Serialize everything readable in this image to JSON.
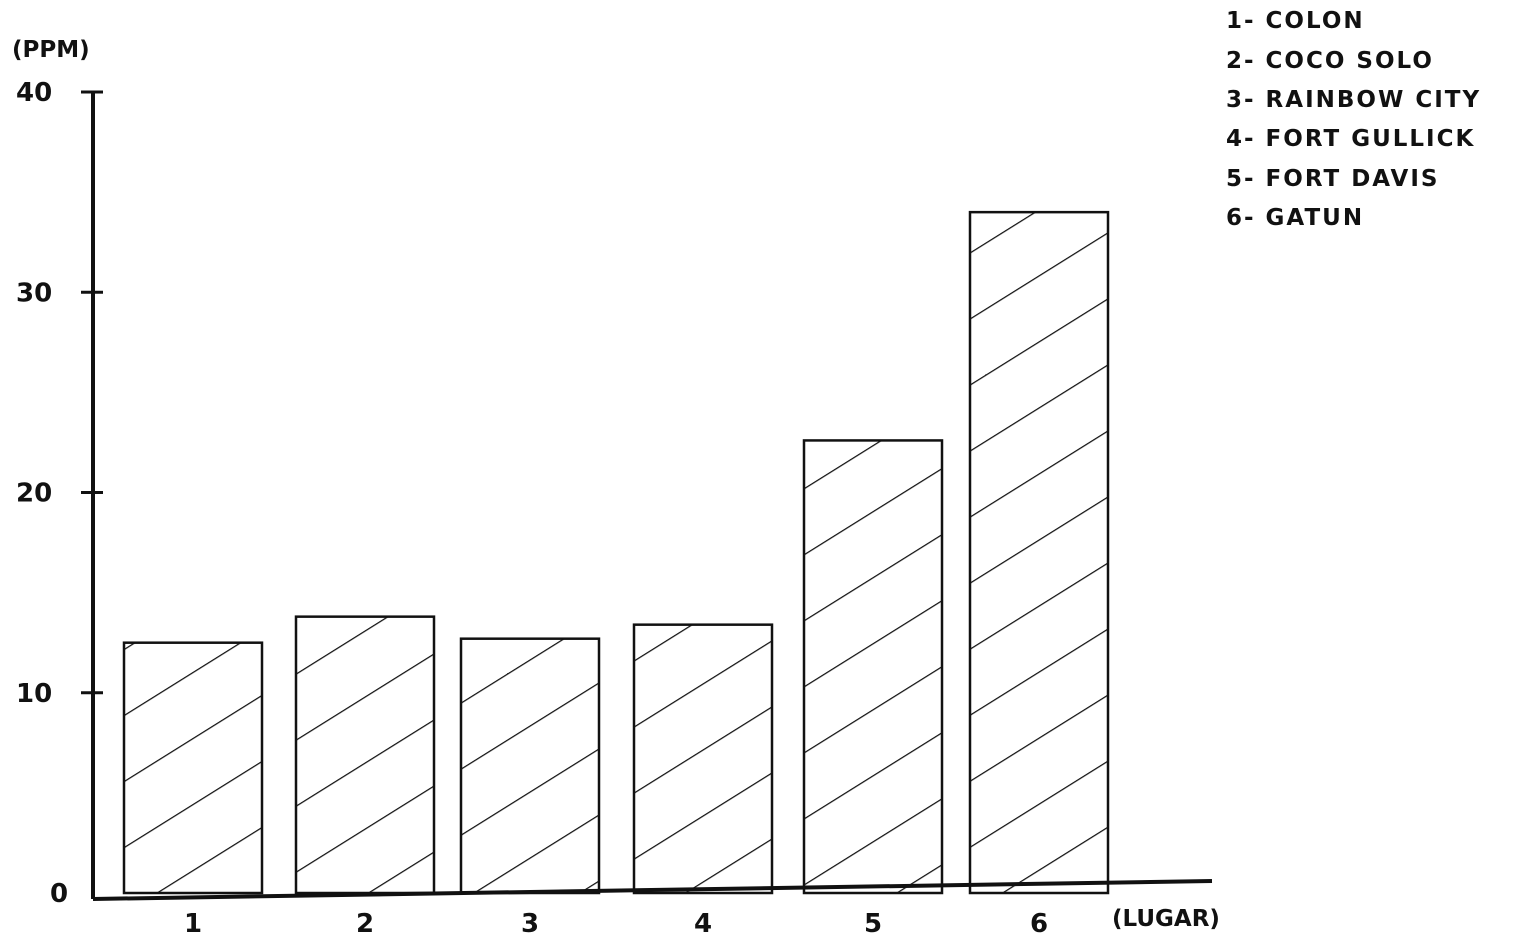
{
  "chart_data": {
    "type": "bar",
    "categories": [
      "1",
      "2",
      "3",
      "4",
      "5",
      "6"
    ],
    "values": [
      12.5,
      13.8,
      12.7,
      13.4,
      22.6,
      34.0
    ],
    "ylabel": "(PPM)",
    "xlabel": "(LUGAR)",
    "ylim": [
      0,
      40
    ],
    "yticks": [
      "0",
      "10",
      "20",
      "30",
      "40"
    ],
    "legend_position": "top-right",
    "legend": [
      "1- COLON",
      "2- COCO SOLO",
      "3- RAINBOW CITY",
      "4- FORT GULLICK",
      "5- FORT DAVIS",
      "6- GATUN"
    ],
    "bar_fill": "hatched",
    "grid": false,
    "colors": {
      "ink": "#111111",
      "background": "#ffffff"
    }
  }
}
